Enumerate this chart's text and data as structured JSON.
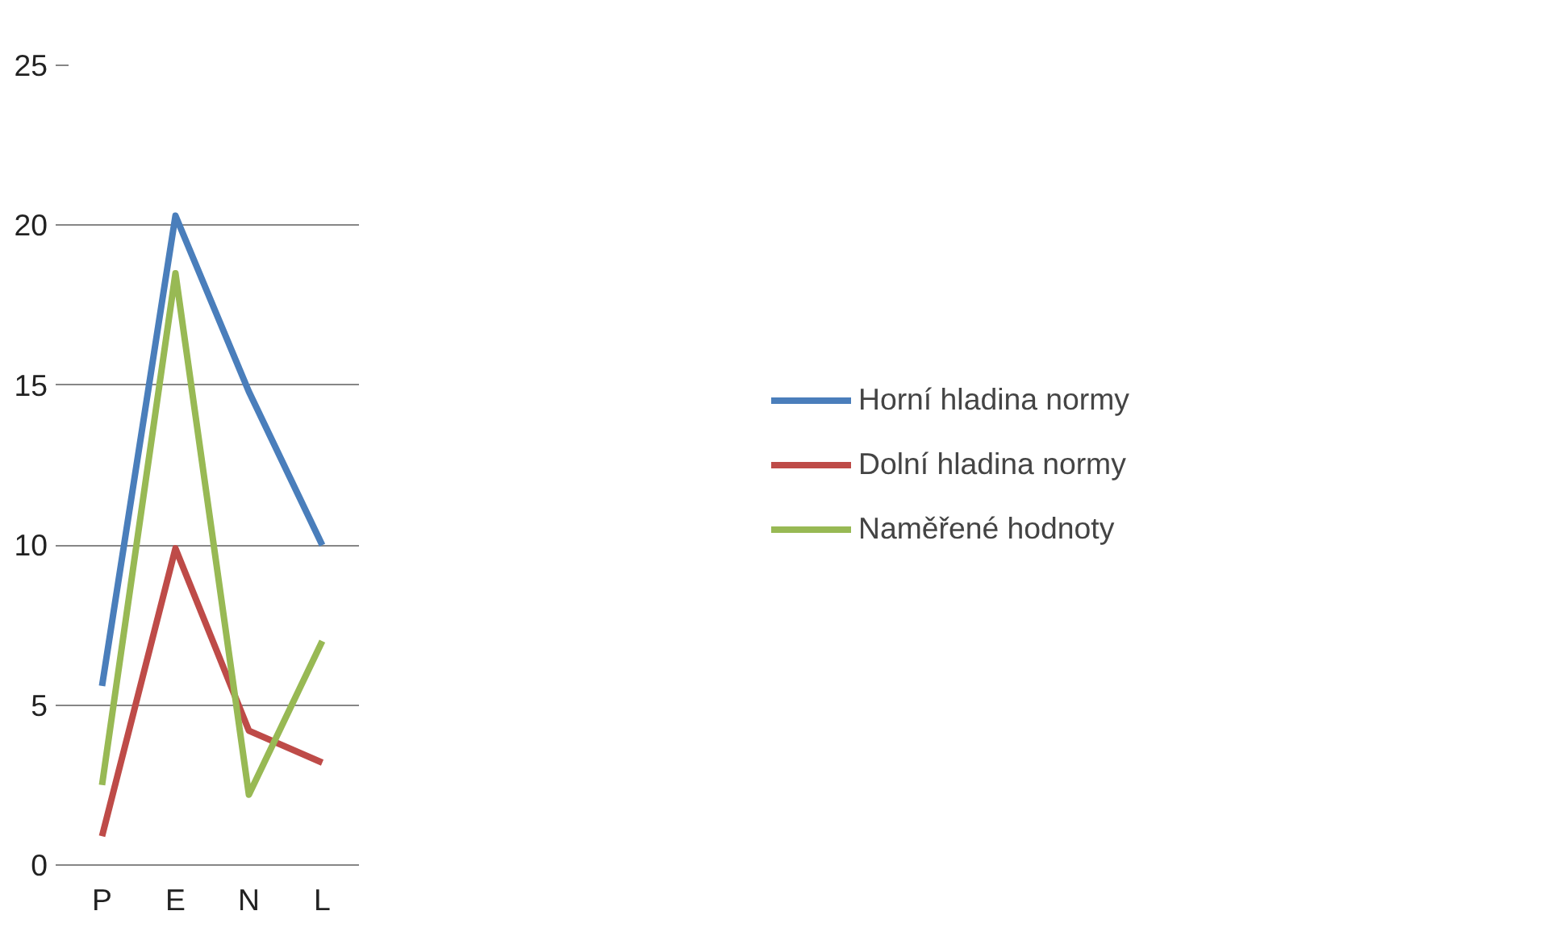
{
  "chart_data": {
    "type": "line",
    "categories": [
      "P",
      "E",
      "N",
      "L"
    ],
    "series": [
      {
        "name": "Horní hladina normy",
        "color": "#4a7ebb",
        "values": [
          5.6,
          20.3,
          14.8,
          10.0
        ]
      },
      {
        "name": "Dolní hladina normy",
        "color": "#be4b48",
        "values": [
          0.9,
          9.9,
          4.2,
          3.2
        ]
      },
      {
        "name": "Naměřené hodnoty",
        "color": "#98b954",
        "values": [
          2.5,
          18.5,
          2.2,
          7.0
        ]
      }
    ],
    "ylim": [
      0,
      25
    ],
    "yticks": [
      0,
      5,
      10,
      15,
      20,
      25
    ],
    "grid": "y",
    "legend": "right",
    "marker": "none",
    "line_style": "solid"
  }
}
